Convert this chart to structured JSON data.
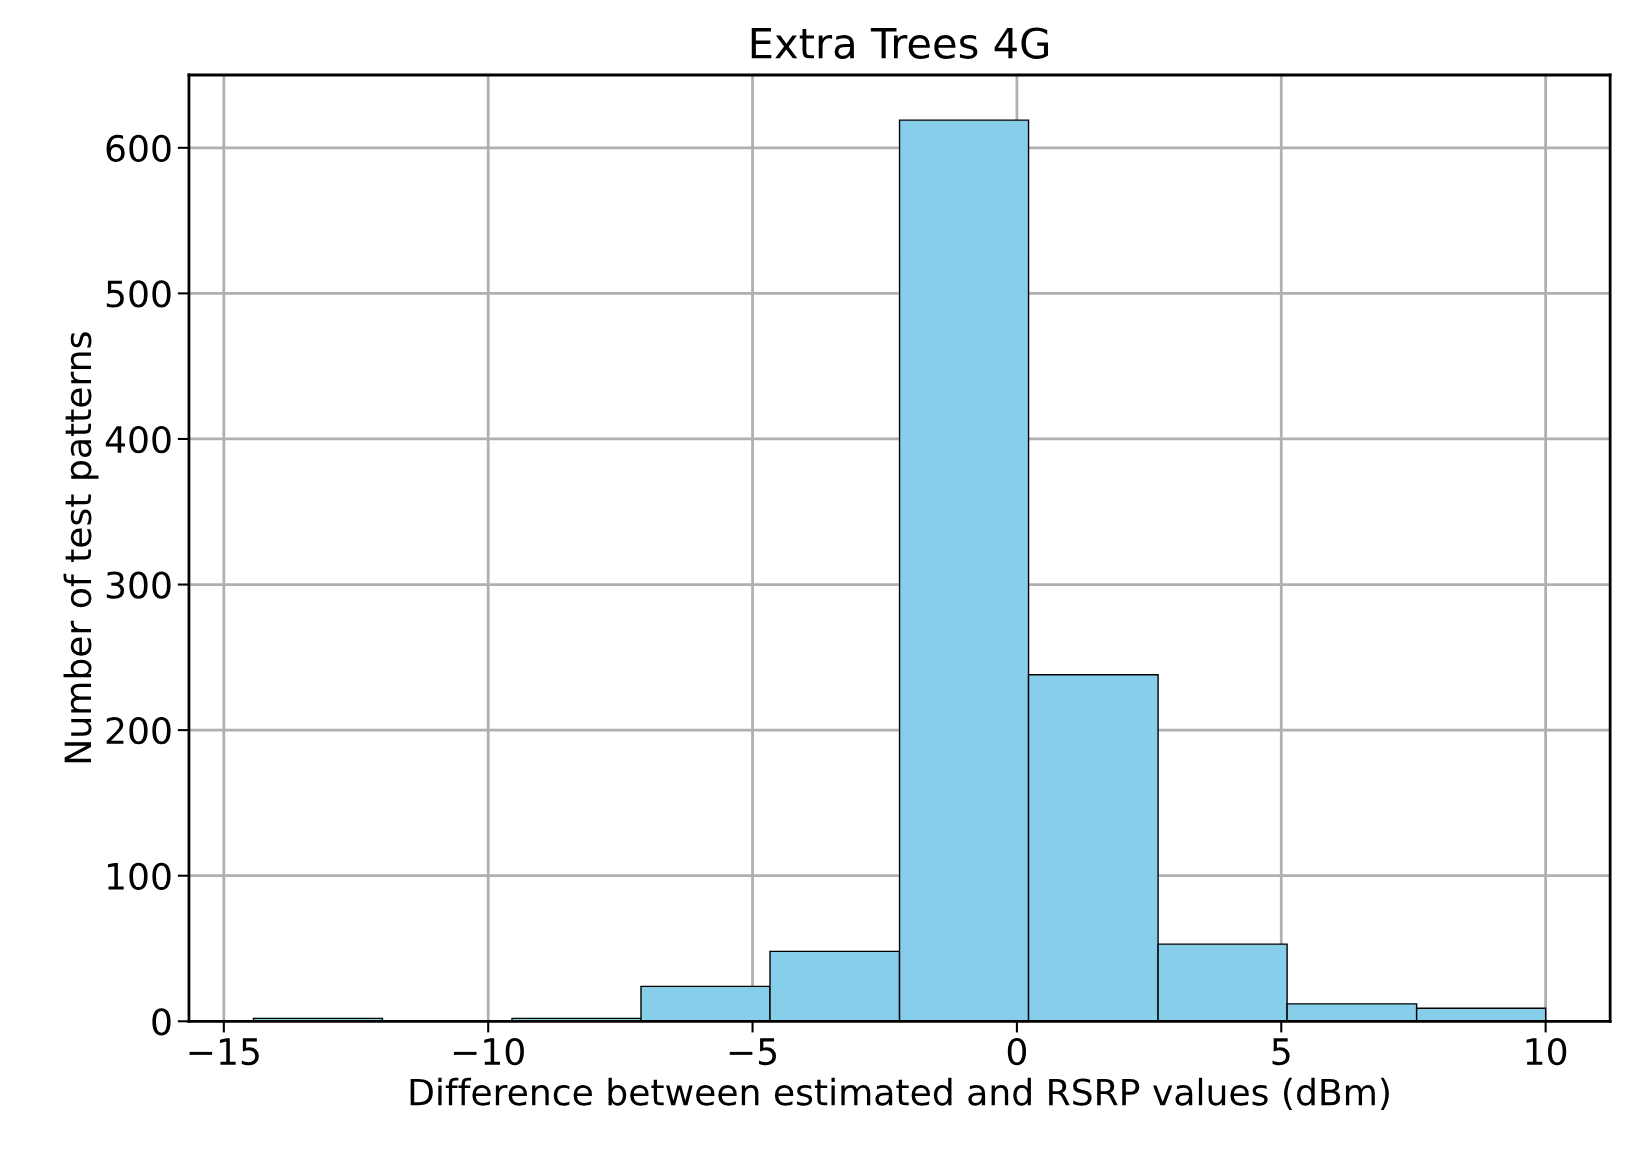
{
  "chart_data": {
    "type": "histogram",
    "title": "Extra Trees 4G",
    "xlabel": "Difference between estimated and RSRP values (dBm)",
    "ylabel": "Number of test patterns",
    "bins": [
      -14.44,
      -12.0,
      -9.55,
      -7.11,
      -4.67,
      -2.22,
      0.22,
      2.67,
      5.11,
      7.56,
      10.0
    ],
    "values": [
      2,
      0,
      2,
      24,
      48,
      619,
      238,
      53,
      12,
      9
    ],
    "color": "#87ceeb",
    "xlim": [
      -15.66,
      11.22
    ],
    "xticks": [
      {
        "value": -15,
        "label": "−15"
      },
      {
        "value": -10,
        "label": "−10"
      },
      {
        "value": -5,
        "label": "−5"
      },
      0,
      5,
      10
    ],
    "ylim": [
      0,
      650
    ],
    "yticks": [
      0,
      100,
      200,
      300,
      400,
      500,
      600
    ],
    "grid": true
  }
}
